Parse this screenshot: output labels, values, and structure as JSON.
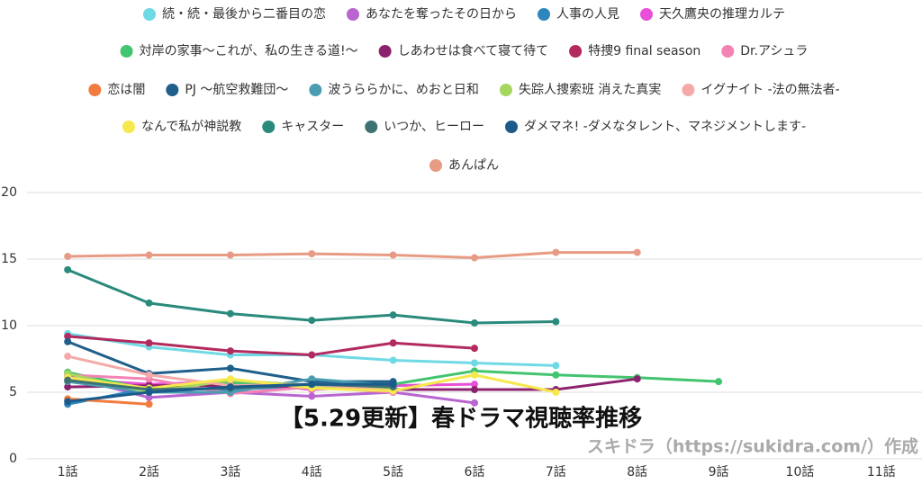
{
  "chart_data": {
    "type": "line",
    "title": "【5.29更新】春ドラマ視聴率推移",
    "credit": "スキドラ（https://sukidra.com/）作成",
    "categories": [
      "1話",
      "2話",
      "3話",
      "4話",
      "5話",
      "6話",
      "7話",
      "8話",
      "9話",
      "10話",
      "11話"
    ],
    "ylim": [
      0,
      20
    ],
    "yticks": [
      0,
      5,
      10,
      15,
      20
    ],
    "grid": true,
    "legend": "top",
    "series": [
      {
        "name": "続・続・最後から二番目の恋",
        "color": "#6fd9e6",
        "values": [
          9.4,
          8.4,
          7.8,
          7.8,
          7.4,
          7.2,
          7.0,
          null,
          null,
          null,
          null
        ]
      },
      {
        "name": "あなたを奪ったその日から",
        "color": "#b865cf",
        "values": [
          6.2,
          4.6,
          5.0,
          4.7,
          5.0,
          4.2,
          null,
          null,
          null,
          null,
          null
        ]
      },
      {
        "name": "人事の人見",
        "color": "#2f86be",
        "values": [
          4.1,
          5.3,
          5.2,
          5.5,
          5.2,
          null,
          null,
          null,
          null,
          null,
          null
        ]
      },
      {
        "name": "天久鷹央の推理カルテ",
        "color": "#e94fd8",
        "values": [
          6.0,
          5.6,
          5.8,
          5.2,
          5.5,
          5.6,
          null,
          null,
          null,
          null,
          null
        ]
      },
      {
        "name": "対岸の家事～これが、私の生きる道!～",
        "color": "#43c46f",
        "values": [
          6.5,
          5.2,
          5.7,
          5.4,
          5.6,
          6.6,
          6.3,
          6.1,
          5.8,
          null,
          null
        ]
      },
      {
        "name": "しあわせは食べて寝て待て",
        "color": "#8c226e",
        "values": [
          5.4,
          5.5,
          5.5,
          5.4,
          5.2,
          5.2,
          5.2,
          6.0,
          null,
          null,
          null
        ]
      },
      {
        "name": "特捜9 final season",
        "color": "#b22a5f",
        "values": [
          9.2,
          8.7,
          8.1,
          7.8,
          8.7,
          8.3,
          null,
          null,
          null,
          null,
          null
        ]
      },
      {
        "name": "Dr.アシュラ",
        "color": "#f283b3",
        "values": [
          6.3,
          6.0,
          4.9,
          5.4,
          5.0,
          null,
          null,
          null,
          null,
          null,
          null
        ]
      },
      {
        "name": "恋は闇",
        "color": "#f27c3d",
        "values": [
          4.5,
          4.1,
          null,
          null,
          null,
          null,
          null,
          null,
          null,
          null,
          null
        ]
      },
      {
        "name": "PJ ～航空救難団～",
        "color": "#1f5f8b",
        "values": [
          8.8,
          6.4,
          6.8,
          5.8,
          5.8,
          null,
          null,
          null,
          null,
          null,
          null
        ]
      },
      {
        "name": "波うららかに、めおと日和",
        "color": "#4b9db1",
        "values": [
          5.8,
          5.0,
          5.0,
          6.0,
          5.5,
          null,
          null,
          null,
          null,
          null,
          null
        ]
      },
      {
        "name": "失踪人捜索班 消えた真実",
        "color": "#a5d65f",
        "values": [
          6.4,
          5.0,
          5.9,
          5.5,
          5.2,
          null,
          null,
          null,
          null,
          null,
          null
        ]
      },
      {
        "name": "イグナイト -法の無法者-",
        "color": "#f5a9a9",
        "values": [
          7.7,
          6.3,
          5.5,
          5.6,
          5.1,
          null,
          null,
          null,
          null,
          null,
          null
        ]
      },
      {
        "name": "なんで私が神説教",
        "color": "#f6e94d",
        "values": [
          6.1,
          5.3,
          6.0,
          5.3,
          5.1,
          6.3,
          5.0,
          null,
          null,
          null,
          null
        ]
      },
      {
        "name": "キャスター",
        "color": "#2a8a7c",
        "values": [
          14.2,
          11.7,
          10.9,
          10.4,
          10.8,
          10.2,
          10.3,
          null,
          null,
          null,
          null
        ]
      },
      {
        "name": "いつか、ヒーロー",
        "color": "#3e7171",
        "values": [
          5.9,
          5.2,
          5.3,
          5.6,
          5.4,
          null,
          null,
          null,
          null,
          null,
          null
        ]
      },
      {
        "name": "ダメマネ! -ダメなタレント、マネジメントします-",
        "color": "#1b5b8b",
        "values": [
          4.3,
          5.0,
          5.4,
          5.6,
          5.6,
          null,
          null,
          null,
          null,
          null,
          null
        ]
      },
      {
        "name": "あんぱん",
        "color": "#e89b84",
        "values": [
          15.2,
          15.3,
          15.3,
          15.4,
          15.3,
          15.1,
          15.5,
          15.5,
          null,
          null,
          null
        ]
      }
    ]
  }
}
